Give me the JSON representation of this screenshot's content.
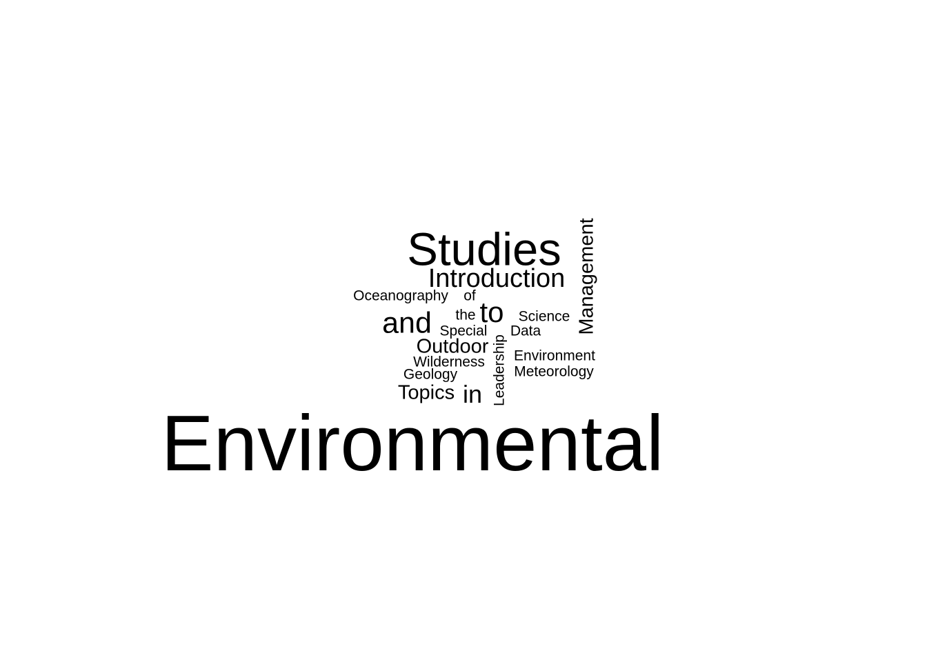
{
  "text_color": "#000000",
  "background_color": "#ffffff",
  "words": [
    {
      "text": "Environmental",
      "orientation": "horizontal"
    },
    {
      "text": "Studies",
      "orientation": "horizontal"
    },
    {
      "text": "Introduction",
      "orientation": "horizontal"
    },
    {
      "text": "Management",
      "orientation": "vertical"
    },
    {
      "text": "Oceanography",
      "orientation": "horizontal"
    },
    {
      "text": "of",
      "orientation": "horizontal"
    },
    {
      "text": "the",
      "orientation": "horizontal"
    },
    {
      "text": "to",
      "orientation": "horizontal"
    },
    {
      "text": "Science",
      "orientation": "horizontal"
    },
    {
      "text": "and",
      "orientation": "horizontal"
    },
    {
      "text": "Special",
      "orientation": "horizontal"
    },
    {
      "text": "Data",
      "orientation": "horizontal"
    },
    {
      "text": "Outdoor",
      "orientation": "horizontal"
    },
    {
      "text": "Leadership",
      "orientation": "vertical"
    },
    {
      "text": "Wilderness",
      "orientation": "horizontal"
    },
    {
      "text": "Environment",
      "orientation": "horizontal"
    },
    {
      "text": "Geology",
      "orientation": "horizontal"
    },
    {
      "text": "Meteorology",
      "orientation": "horizontal"
    },
    {
      "text": "Topics",
      "orientation": "horizontal"
    },
    {
      "text": "in",
      "orientation": "horizontal"
    }
  ]
}
